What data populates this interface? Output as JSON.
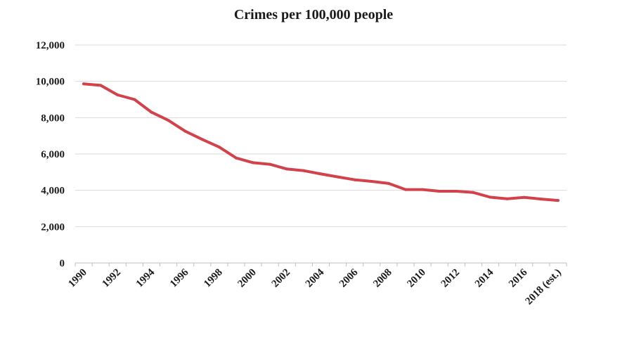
{
  "chart_data": {
    "type": "line",
    "title": "Crimes per 100,000 people",
    "xlabel": "",
    "ylabel": "",
    "ylim": [
      0,
      12000
    ],
    "yticks": [
      "0",
      "2,000",
      "4,000",
      "6,000",
      "8,000",
      "10,000",
      "12,000"
    ],
    "xtick_labels": [
      "1990",
      "1992",
      "1994",
      "1996",
      "1998",
      "2000",
      "2002",
      "2004",
      "2006",
      "2008",
      "2010",
      "2012",
      "2014",
      "2016",
      "2018 (est.)"
    ],
    "x": [
      "1990",
      "1991",
      "1992",
      "1993",
      "1994",
      "1995",
      "1996",
      "1997",
      "1998",
      "1999",
      "2000",
      "2001",
      "2002",
      "2003",
      "2004",
      "2005",
      "2006",
      "2007",
      "2008",
      "2009",
      "2010",
      "2011",
      "2012",
      "2013",
      "2014",
      "2015",
      "2016",
      "2017",
      "2018 (est.)"
    ],
    "series": [
      {
        "values": [
          9860,
          9780,
          9250,
          9000,
          8300,
          7850,
          7250,
          6800,
          6380,
          5780,
          5520,
          5430,
          5170,
          5080,
          4900,
          4740,
          4580,
          4490,
          4380,
          4040,
          4040,
          3950,
          3950,
          3880,
          3620,
          3530,
          3610,
          3520,
          3440
        ],
        "color": "#d2424a"
      }
    ],
    "grid": true,
    "legend": "none"
  }
}
